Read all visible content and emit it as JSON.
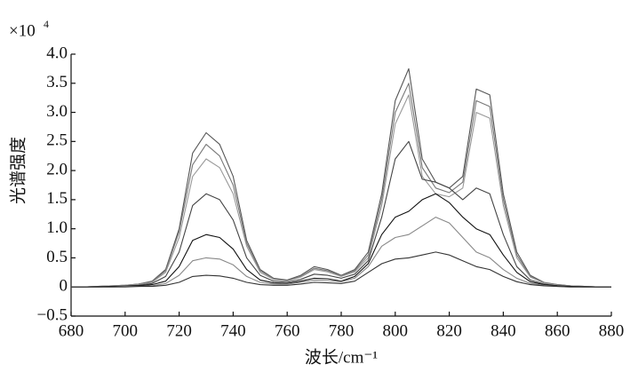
{
  "chart_data": {
    "type": "line",
    "xlabel": "波长/cm⁻¹",
    "ylabel": "光谱强度",
    "y_scale": {
      "base": "×10",
      "exponent": "4"
    },
    "x": [
      680,
      685,
      690,
      695,
      700,
      705,
      710,
      715,
      720,
      725,
      730,
      735,
      740,
      745,
      750,
      755,
      760,
      765,
      770,
      775,
      780,
      785,
      790,
      795,
      800,
      805,
      810,
      815,
      820,
      825,
      830,
      835,
      840,
      845,
      850,
      855,
      860,
      865,
      870,
      875,
      880
    ],
    "series": [
      {
        "color": "#555555",
        "values": [
          0,
          0,
          0.01,
          0.02,
          0.03,
          0.05,
          0.1,
          0.3,
          1.0,
          2.3,
          2.65,
          2.45,
          1.9,
          0.8,
          0.3,
          0.15,
          0.12,
          0.2,
          0.35,
          0.3,
          0.2,
          0.3,
          0.6,
          1.6,
          3.2,
          3.75,
          2.2,
          1.8,
          1.7,
          1.9,
          3.4,
          3.3,
          1.6,
          0.6,
          0.2,
          0.08,
          0.04,
          0.02,
          0.01,
          0,
          0
        ]
      },
      {
        "color": "#777777",
        "values": [
          0,
          0,
          0.01,
          0.02,
          0.03,
          0.05,
          0.09,
          0.28,
          0.95,
          2.1,
          2.45,
          2.25,
          1.75,
          0.75,
          0.28,
          0.14,
          0.11,
          0.18,
          0.32,
          0.28,
          0.19,
          0.28,
          0.55,
          1.5,
          3.0,
          3.5,
          2.05,
          1.7,
          1.62,
          1.8,
          3.2,
          3.1,
          1.5,
          0.55,
          0.18,
          0.07,
          0.04,
          0.02,
          0.01,
          0,
          0
        ]
      },
      {
        "color": "#999999",
        "values": [
          0,
          0,
          0.01,
          0.02,
          0.03,
          0.04,
          0.08,
          0.25,
          0.85,
          1.9,
          2.2,
          2.05,
          1.6,
          0.7,
          0.25,
          0.13,
          0.1,
          0.17,
          0.3,
          0.26,
          0.18,
          0.26,
          0.5,
          1.4,
          2.8,
          3.3,
          1.9,
          1.6,
          1.55,
          1.7,
          3.0,
          2.9,
          1.4,
          0.5,
          0.17,
          0.07,
          0.03,
          0.02,
          0.01,
          0,
          0
        ]
      },
      {
        "color": "#444444",
        "values": [
          0,
          0,
          0.01,
          0.01,
          0.02,
          0.03,
          0.06,
          0.18,
          0.6,
          1.4,
          1.6,
          1.5,
          1.15,
          0.5,
          0.2,
          0.1,
          0.08,
          0.13,
          0.22,
          0.2,
          0.15,
          0.22,
          0.45,
          1.2,
          2.2,
          2.5,
          1.85,
          1.8,
          1.7,
          1.5,
          1.7,
          1.6,
          0.9,
          0.35,
          0.12,
          0.05,
          0.02,
          0.01,
          0.01,
          0,
          0
        ]
      },
      {
        "color": "#111111",
        "values": [
          0,
          0,
          0,
          0.01,
          0.01,
          0.02,
          0.04,
          0.1,
          0.35,
          0.8,
          0.9,
          0.85,
          0.65,
          0.3,
          0.12,
          0.07,
          0.06,
          0.1,
          0.15,
          0.14,
          0.1,
          0.18,
          0.4,
          0.9,
          1.2,
          1.3,
          1.5,
          1.6,
          1.45,
          1.2,
          1.0,
          0.9,
          0.55,
          0.25,
          0.09,
          0.04,
          0.02,
          0.01,
          0,
          0,
          0
        ]
      },
      {
        "color": "#888888",
        "values": [
          0,
          0,
          0,
          0,
          0.01,
          0.01,
          0.02,
          0.06,
          0.2,
          0.45,
          0.5,
          0.48,
          0.38,
          0.18,
          0.08,
          0.05,
          0.05,
          0.08,
          0.12,
          0.11,
          0.09,
          0.15,
          0.35,
          0.7,
          0.85,
          0.9,
          1.05,
          1.2,
          1.1,
          0.85,
          0.6,
          0.5,
          0.3,
          0.15,
          0.06,
          0.03,
          0.01,
          0,
          0,
          0,
          0
        ]
      },
      {
        "color": "#333333",
        "values": [
          0,
          0,
          0,
          0,
          0,
          0.01,
          0.01,
          0.03,
          0.08,
          0.18,
          0.2,
          0.19,
          0.15,
          0.08,
          0.04,
          0.03,
          0.03,
          0.05,
          0.08,
          0.07,
          0.06,
          0.1,
          0.25,
          0.4,
          0.48,
          0.5,
          0.55,
          0.6,
          0.55,
          0.45,
          0.35,
          0.3,
          0.18,
          0.09,
          0.04,
          0.02,
          0.01,
          0,
          0,
          0,
          0
        ]
      }
    ],
    "xlim": [
      680,
      880
    ],
    "xticks": [
      680,
      700,
      720,
      740,
      760,
      780,
      800,
      820,
      840,
      860,
      880
    ],
    "ylim": [
      -0.5,
      4.0
    ],
    "yticks": [
      {
        "value": -0.5,
        "label": "−0.5"
      },
      0,
      0.5,
      {
        "value": 1.0,
        "label": "1.0"
      },
      1.5,
      {
        "value": 2.0,
        "label": "2.0"
      },
      2.5,
      {
        "value": 3.0,
        "label": "3.0"
      },
      3.5,
      {
        "value": 4.0,
        "label": "4.0"
      }
    ],
    "grid": false
  }
}
